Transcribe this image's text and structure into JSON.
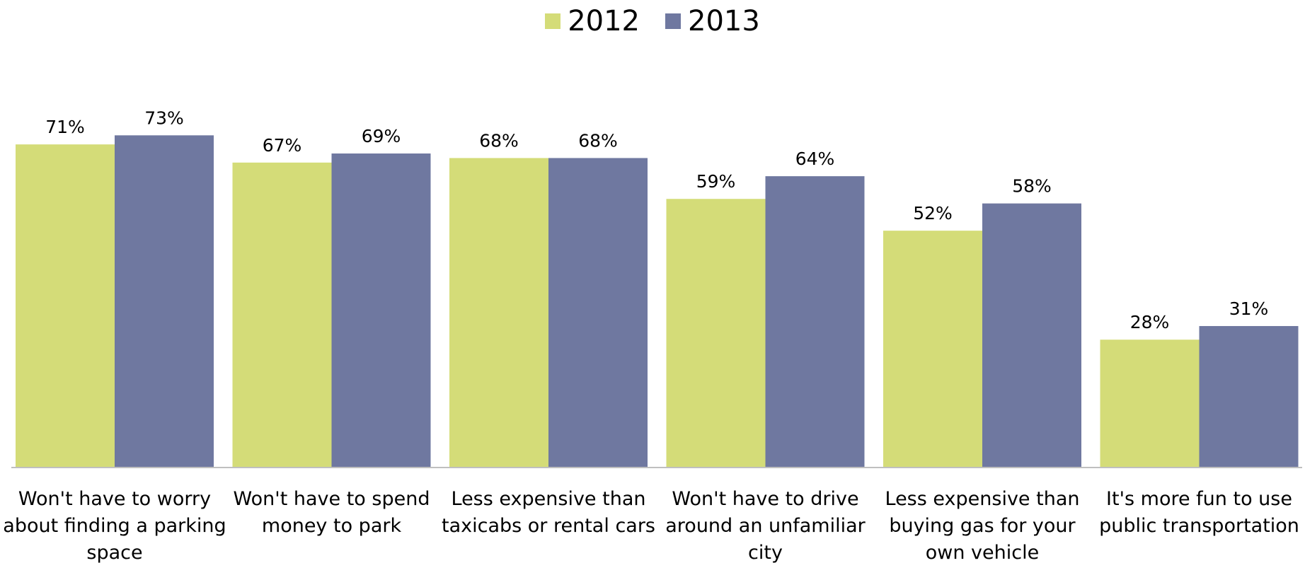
{
  "chart_data": {
    "type": "bar",
    "title": "",
    "xlabel": "",
    "ylabel": "",
    "ylim": [
      0,
      100
    ],
    "grid": false,
    "legend_position": "top-center",
    "categories": [
      "Won't have to worry about finding a parking space",
      "Won't have to spend money to park",
      "Less expensive than taxicabs or rental cars",
      "Won't have to drive around an unfamiliar city",
      "Less expensive than buying gas for your own vehicle",
      "It's more fun to use public transportation"
    ],
    "category_lines": [
      [
        "Won't have to worry",
        "about finding a parking",
        "space"
      ],
      [
        "Won't have to spend",
        "money to park"
      ],
      [
        "Less expensive than",
        "taxicabs or rental cars"
      ],
      [
        "Won't have to drive",
        "around an unfamiliar",
        "city"
      ],
      [
        "Less expensive than",
        "buying gas for your",
        "own vehicle"
      ],
      [
        "It's more fun to use",
        "public transportation"
      ]
    ],
    "series": [
      {
        "name": "2012",
        "color": "#d4dc78",
        "values": [
          71,
          67,
          68,
          59,
          52,
          28
        ],
        "labels": [
          "71%",
          "67%",
          "68%",
          "59%",
          "52%",
          "28%"
        ]
      },
      {
        "name": "2013",
        "color": "#6f78a0",
        "values": [
          73,
          69,
          68,
          64,
          58,
          31
        ],
        "labels": [
          "73%",
          "69%",
          "68%",
          "64%",
          "58%",
          "31%"
        ]
      }
    ]
  }
}
